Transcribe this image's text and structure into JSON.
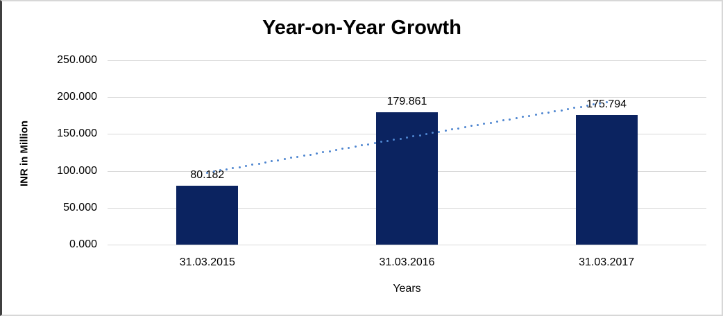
{
  "chart_data": {
    "type": "bar",
    "title": "Year-on-Year Growth",
    "categories": [
      "31.03.2015",
      "31.03.2016",
      "31.03.2017"
    ],
    "values": [
      80.182,
      179.861,
      175.794
    ],
    "value_labels": [
      "80.182",
      "179.861",
      "175.794"
    ],
    "xlabel": "Years",
    "ylabel": "INR in Million",
    "ylim": [
      0,
      250
    ],
    "ytick_step": 50,
    "ytick_labels": [
      "0.000",
      "50.000",
      "100.000",
      "150.000",
      "200.000",
      "250.000"
    ],
    "ytick_values": [
      0,
      50,
      100,
      150,
      200,
      250
    ],
    "grid": true,
    "legend": "none",
    "bar_color": "#0b2360",
    "gridline_color": "#d9d9d9",
    "trendline": {
      "style": "dotted",
      "color": "#4f86d0",
      "start_value": 97.5,
      "end_value": 193.1
    }
  }
}
